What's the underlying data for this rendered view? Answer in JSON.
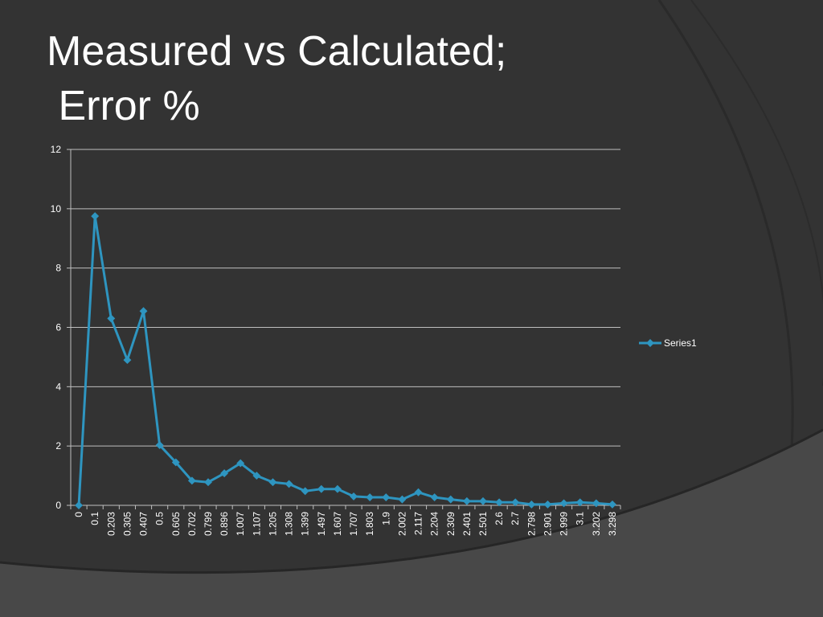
{
  "slide": {
    "title_line1": "Measured vs Calculated;",
    "title_line2": " Error %"
  },
  "colors": {
    "background": "#333333",
    "series": "#2e95c0",
    "grid": "#bfbfbf",
    "text": "#ffffff"
  },
  "chart_data": {
    "type": "line",
    "title": "",
    "xlabel": "",
    "ylabel": "",
    "ylim": [
      0,
      12
    ],
    "yticks": [
      0,
      2,
      4,
      6,
      8,
      10,
      12
    ],
    "grid": true,
    "legend_position": "right",
    "categories": [
      "0",
      "0.1",
      "0.203",
      "0.305",
      "0.407",
      "0.5",
      "0.605",
      "0.702",
      "0.799",
      "0.896",
      "1.007",
      "1.107",
      "1.205",
      "1.308",
      "1.399",
      "1.497",
      "1.607",
      "1.707",
      "1.803",
      "1.9",
      "2.002",
      "2.117",
      "2.204",
      "2.309",
      "2.401",
      "2.501",
      "2.6",
      "2.7",
      "2.798",
      "2.901",
      "2.999",
      "3.1",
      "3.202",
      "3.298"
    ],
    "series": [
      {
        "name": "Series1",
        "values": [
          0,
          9.75,
          6.3,
          4.9,
          6.55,
          2.03,
          1.45,
          0.83,
          0.78,
          1.08,
          1.42,
          1.0,
          0.78,
          0.72,
          0.48,
          0.55,
          0.55,
          0.3,
          0.27,
          0.27,
          0.2,
          0.44,
          0.27,
          0.2,
          0.14,
          0.14,
          0.1,
          0.1,
          0.03,
          0.03,
          0.07,
          0.1,
          0.07,
          0.03
        ]
      }
    ]
  }
}
